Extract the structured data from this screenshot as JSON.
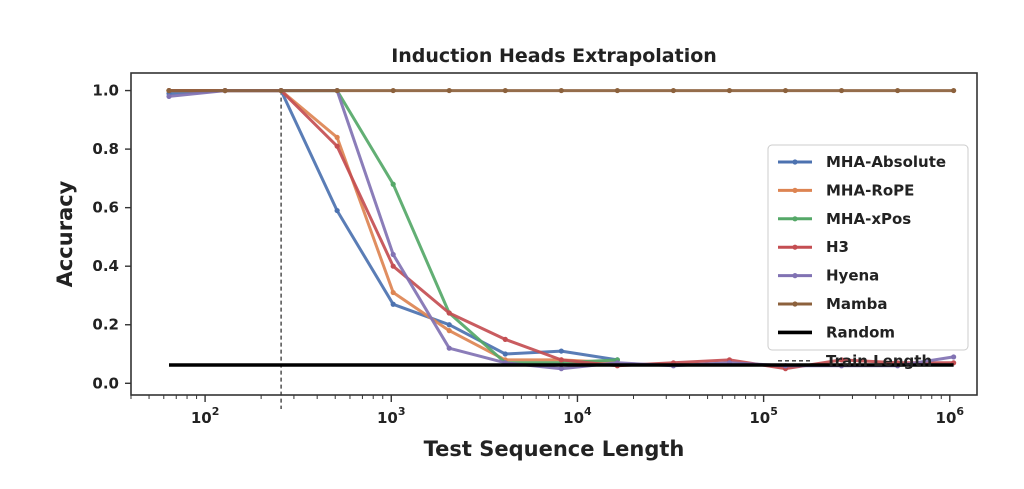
{
  "chart_data": {
    "type": "line",
    "title": "Induction Heads Extrapolation",
    "xlabel": "Test Sequence Length",
    "ylabel": "Accuracy",
    "xscale": "log",
    "xlim": [
      40,
      1400000
    ],
    "ylim": [
      -0.04,
      1.06
    ],
    "xticks": [
      {
        "value": 100,
        "base": "10",
        "exp": "2"
      },
      {
        "value": 1000,
        "base": "10",
        "exp": "3"
      },
      {
        "value": 10000,
        "base": "10",
        "exp": "4"
      },
      {
        "value": 100000,
        "base": "10",
        "exp": "5"
      },
      {
        "value": 1000000,
        "base": "10",
        "exp": "6"
      }
    ],
    "yticks": [
      "0.0",
      "0.2",
      "0.4",
      "0.6",
      "0.8",
      "1.0"
    ],
    "legend_position": "right",
    "grid": false,
    "series": [
      {
        "name": "MHA-Absolute",
        "color": "#4c72b0",
        "x": [
          64,
          128,
          256,
          512,
          1024,
          2048,
          4096,
          8192,
          16384
        ],
        "y": [
          0.99,
          1.0,
          1.0,
          0.59,
          0.27,
          0.2,
          0.1,
          0.11,
          0.08
        ]
      },
      {
        "name": "MHA-RoPE",
        "color": "#dd8452",
        "x": [
          64,
          128,
          256,
          512,
          1024,
          2048,
          4096,
          8192,
          16384
        ],
        "y": [
          1.0,
          1.0,
          1.0,
          0.84,
          0.31,
          0.18,
          0.08,
          0.08,
          0.07
        ]
      },
      {
        "name": "MHA-xPos",
        "color": "#55a868",
        "x": [
          64,
          128,
          256,
          512,
          1024,
          2048,
          4096,
          8192,
          16384
        ],
        "y": [
          1.0,
          1.0,
          1.0,
          1.0,
          0.68,
          0.24,
          0.07,
          0.07,
          0.08
        ]
      },
      {
        "name": "H3",
        "color": "#c44e52",
        "x": [
          64,
          128,
          256,
          512,
          1024,
          2048,
          4096,
          8192,
          16384,
          32768,
          65536,
          131072,
          262144,
          524288,
          1048576
        ],
        "y": [
          1.0,
          1.0,
          1.0,
          0.81,
          0.4,
          0.24,
          0.15,
          0.08,
          0.06,
          0.07,
          0.08,
          0.05,
          0.08,
          0.07,
          0.07
        ]
      },
      {
        "name": "Hyena",
        "color": "#8172b3",
        "x": [
          64,
          128,
          256,
          512,
          1024,
          2048,
          4096,
          8192,
          16384,
          32768,
          65536,
          131072,
          262144,
          524288,
          1048576
        ],
        "y": [
          0.98,
          1.0,
          1.0,
          1.0,
          0.44,
          0.12,
          0.07,
          0.05,
          0.07,
          0.06,
          0.07,
          0.06,
          0.06,
          0.06,
          0.09
        ]
      },
      {
        "name": "Mamba",
        "color": "#8c613c",
        "x": [
          64,
          128,
          256,
          512,
          1024,
          2048,
          4096,
          8192,
          16384,
          32768,
          65536,
          131072,
          262144,
          524288,
          1048576
        ],
        "y": [
          1.0,
          1.0,
          1.0,
          1.0,
          1.0,
          1.0,
          1.0,
          1.0,
          1.0,
          1.0,
          1.0,
          1.0,
          1.0,
          1.0,
          1.0
        ]
      }
    ],
    "random_baseline": {
      "name": "Random",
      "value": 0.0625,
      "x_range": [
        64,
        1048576
      ],
      "color": "#000000"
    },
    "train_length": {
      "name": "Train Length",
      "value": 256,
      "color": "#333333"
    }
  }
}
